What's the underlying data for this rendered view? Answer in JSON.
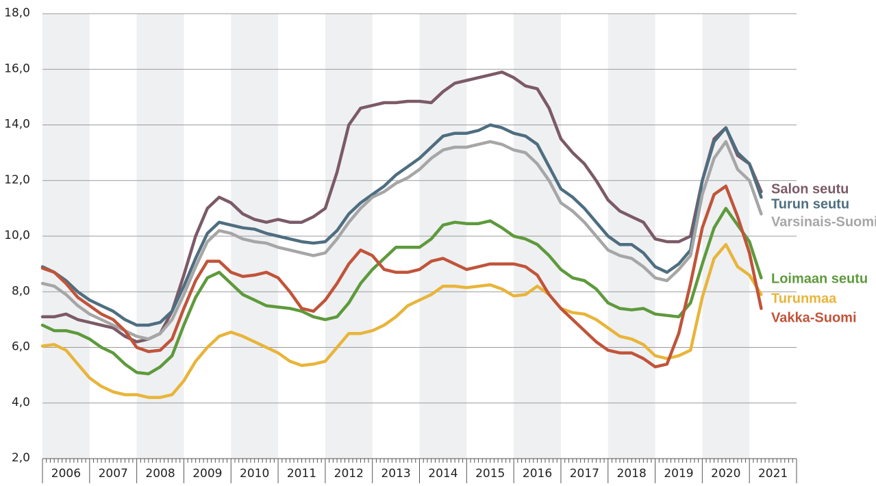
{
  "chart_data": {
    "type": "line",
    "x": [
      2006.0,
      2006.25,
      2006.5,
      2006.75,
      2007.0,
      2007.25,
      2007.5,
      2007.75,
      2008.0,
      2008.25,
      2008.5,
      2008.75,
      2009.0,
      2009.25,
      2009.5,
      2009.75,
      2010.0,
      2010.25,
      2010.5,
      2010.75,
      2011.0,
      2011.25,
      2011.5,
      2011.75,
      2012.0,
      2012.25,
      2012.5,
      2012.75,
      2013.0,
      2013.25,
      2013.5,
      2013.75,
      2014.0,
      2014.25,
      2014.5,
      2014.75,
      2015.0,
      2015.25,
      2015.5,
      2015.75,
      2016.0,
      2016.25,
      2016.5,
      2016.75,
      2017.0,
      2017.25,
      2017.5,
      2017.75,
      2018.0,
      2018.25,
      2018.5,
      2018.75,
      2019.0,
      2019.25,
      2019.5,
      2019.75,
      2020.0,
      2020.25,
      2020.5,
      2020.75,
      2021.0,
      2021.25
    ],
    "xlim": [
      2006,
      2022
    ],
    "xticks": [
      {
        "value": 2006.5,
        "label": "2006"
      },
      {
        "value": 2007.5,
        "label": "2007"
      },
      {
        "value": 2008.5,
        "label": "2008"
      },
      {
        "value": 2009.5,
        "label": "2009"
      },
      {
        "value": 2010.5,
        "label": "2010"
      },
      {
        "value": 2011.5,
        "label": "2011"
      },
      {
        "value": 2012.5,
        "label": "2012"
      },
      {
        "value": 2013.5,
        "label": "2013"
      },
      {
        "value": 2014.5,
        "label": "2014"
      },
      {
        "value": 2015.5,
        "label": "2015"
      },
      {
        "value": 2016.5,
        "label": "2016"
      },
      {
        "value": 2017.5,
        "label": "2017"
      },
      {
        "value": 2018.5,
        "label": "2018"
      },
      {
        "value": 2019.5,
        "label": "2019"
      },
      {
        "value": 2020.5,
        "label": "2020"
      },
      {
        "value": 2021.5,
        "label": "2021"
      }
    ],
    "ylim": [
      2,
      18
    ],
    "yticks": [
      {
        "value": 2,
        "label": "2,0"
      },
      {
        "value": 4,
        "label": "4,0"
      },
      {
        "value": 6,
        "label": "6,0"
      },
      {
        "value": 8,
        "label": "8,0"
      },
      {
        "value": 10,
        "label": "10,0"
      },
      {
        "value": 12,
        "label": "12,0"
      },
      {
        "value": 14,
        "label": "14,0"
      },
      {
        "value": 16,
        "label": "16,0"
      },
      {
        "value": 18,
        "label": "18,0"
      }
    ],
    "grid": true,
    "series": [
      {
        "name": "Salon seutu",
        "color": "#7b5a67",
        "values": [
          7.1,
          7.1,
          7.2,
          7.0,
          6.9,
          6.8,
          6.7,
          6.4,
          6.2,
          6.3,
          6.5,
          7.3,
          8.6,
          10.0,
          11.0,
          11.4,
          11.2,
          10.8,
          10.6,
          10.5,
          10.6,
          10.5,
          10.5,
          10.7,
          11.0,
          12.3,
          14.0,
          14.6,
          14.7,
          14.8,
          14.8,
          14.85,
          14.85,
          14.8,
          15.2,
          15.5,
          15.6,
          15.7,
          15.8,
          15.9,
          15.7,
          15.4,
          15.3,
          14.6,
          13.5,
          13.0,
          12.6,
          12.0,
          11.3,
          10.9,
          10.7,
          10.5,
          9.9,
          9.8,
          9.8,
          10.0,
          12.0,
          13.5,
          13.9,
          12.9,
          12.6,
          11.6
        ]
      },
      {
        "name": "Turun seutu",
        "color": "#4e6e80",
        "values": [
          8.9,
          8.7,
          8.4,
          8.0,
          7.7,
          7.5,
          7.3,
          7.0,
          6.8,
          6.8,
          6.9,
          7.3,
          8.2,
          9.2,
          10.1,
          10.5,
          10.4,
          10.3,
          10.25,
          10.1,
          10.0,
          9.9,
          9.8,
          9.75,
          9.8,
          10.2,
          10.8,
          11.2,
          11.5,
          11.8,
          12.2,
          12.5,
          12.8,
          13.2,
          13.6,
          13.7,
          13.7,
          13.8,
          14.0,
          13.9,
          13.7,
          13.6,
          13.3,
          12.5,
          11.7,
          11.4,
          11.0,
          10.5,
          10.0,
          9.7,
          9.7,
          9.4,
          8.9,
          8.7,
          9.0,
          9.5,
          12.0,
          13.4,
          13.9,
          13.0,
          12.6,
          11.4
        ]
      },
      {
        "name": "Varsinais-Suomi",
        "color": "#a6a6a6",
        "values": [
          8.3,
          8.2,
          7.9,
          7.5,
          7.2,
          7.0,
          6.8,
          6.6,
          6.4,
          6.3,
          6.5,
          7.0,
          7.9,
          8.9,
          9.8,
          10.2,
          10.1,
          9.9,
          9.8,
          9.75,
          9.6,
          9.5,
          9.4,
          9.3,
          9.4,
          9.9,
          10.5,
          11.0,
          11.4,
          11.6,
          11.9,
          12.1,
          12.4,
          12.8,
          13.1,
          13.2,
          13.2,
          13.3,
          13.4,
          13.3,
          13.1,
          13.0,
          12.6,
          12.0,
          11.2,
          10.9,
          10.5,
          10.0,
          9.5,
          9.3,
          9.2,
          8.9,
          8.5,
          8.4,
          8.8,
          9.3,
          11.5,
          12.8,
          13.4,
          12.4,
          12.0,
          10.8
        ]
      },
      {
        "name": "Loimaan seutu",
        "color": "#5e9a3c",
        "values": [
          6.8,
          6.6,
          6.6,
          6.5,
          6.3,
          6.0,
          5.8,
          5.4,
          5.1,
          5.05,
          5.3,
          5.7,
          6.8,
          7.8,
          8.5,
          8.7,
          8.3,
          7.9,
          7.7,
          7.5,
          7.45,
          7.4,
          7.3,
          7.1,
          7.0,
          7.1,
          7.6,
          8.3,
          8.8,
          9.2,
          9.6,
          9.6,
          9.6,
          9.9,
          10.4,
          10.5,
          10.45,
          10.45,
          10.55,
          10.3,
          10.0,
          9.9,
          9.7,
          9.3,
          8.8,
          8.5,
          8.4,
          8.1,
          7.6,
          7.4,
          7.35,
          7.4,
          7.2,
          7.15,
          7.1,
          7.6,
          9.0,
          10.3,
          11.0,
          10.4,
          9.8,
          8.5
        ]
      },
      {
        "name": "Turunmaa",
        "color": "#e8b53a",
        "values": [
          6.05,
          6.1,
          5.9,
          5.4,
          4.9,
          4.6,
          4.4,
          4.3,
          4.3,
          4.2,
          4.2,
          4.3,
          4.8,
          5.5,
          6.0,
          6.4,
          6.55,
          6.4,
          6.2,
          6.0,
          5.8,
          5.5,
          5.35,
          5.4,
          5.5,
          6.0,
          6.5,
          6.5,
          6.6,
          6.8,
          7.1,
          7.5,
          7.7,
          7.9,
          8.2,
          8.2,
          8.15,
          8.2,
          8.25,
          8.1,
          7.85,
          7.9,
          8.2,
          7.9,
          7.4,
          7.25,
          7.2,
          7.0,
          6.7,
          6.4,
          6.3,
          6.1,
          5.7,
          5.6,
          5.7,
          5.9,
          7.8,
          9.2,
          9.7,
          8.9,
          8.6,
          7.9
        ]
      },
      {
        "name": "Vakka-Suomi",
        "color": "#c0543a",
        "values": [
          8.85,
          8.7,
          8.3,
          7.8,
          7.5,
          7.2,
          7.0,
          6.6,
          6.0,
          5.85,
          5.9,
          6.3,
          7.4,
          8.4,
          9.1,
          9.1,
          8.7,
          8.55,
          8.6,
          8.7,
          8.5,
          8.0,
          7.4,
          7.3,
          7.7,
          8.3,
          9.0,
          9.5,
          9.3,
          8.8,
          8.7,
          8.7,
          8.8,
          9.1,
          9.2,
          9.0,
          8.8,
          8.9,
          9.0,
          9.0,
          9.0,
          8.9,
          8.6,
          7.9,
          7.4,
          7.0,
          6.6,
          6.2,
          5.9,
          5.8,
          5.8,
          5.6,
          5.3,
          5.4,
          6.5,
          8.3,
          10.3,
          11.5,
          11.8,
          10.7,
          9.4,
          7.4
        ]
      }
    ]
  }
}
